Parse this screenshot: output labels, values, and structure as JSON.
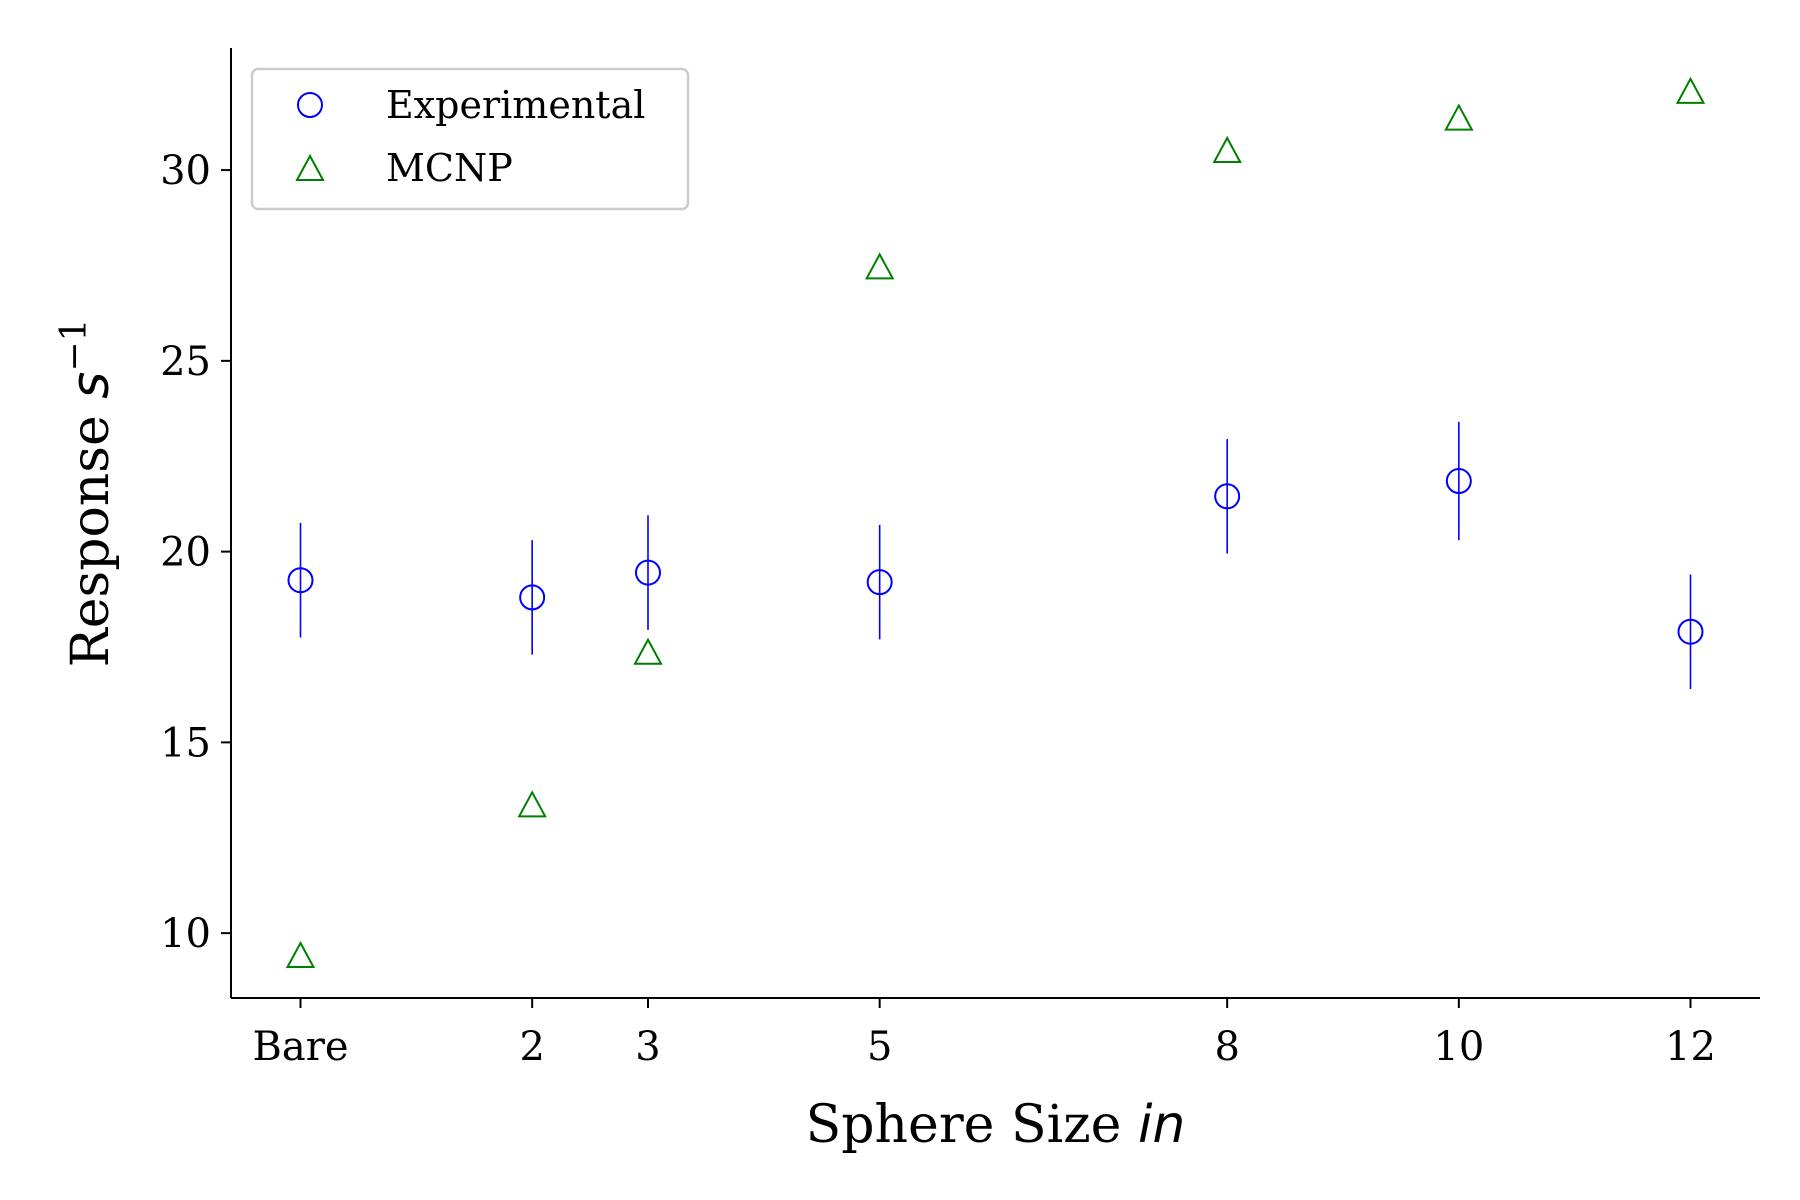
{
  "chart_data": {
    "type": "scatter",
    "title": "",
    "xlabel": {
      "text": "Sphere Size ",
      "italic": "in"
    },
    "ylabel": {
      "text": "Response ",
      "italic": "s",
      "sup": "−1"
    },
    "x": [
      0,
      2,
      3,
      5,
      8,
      10,
      12
    ],
    "x_tick_labels": [
      "Bare",
      "2",
      "3",
      "5",
      "8",
      "10",
      "12"
    ],
    "xlim": [
      -0.6,
      12.6
    ],
    "ylim": [
      8.3,
      33.2
    ],
    "y_ticks": [
      10,
      15,
      20,
      25,
      30
    ],
    "grid": false,
    "legend_position": "top-left",
    "series": [
      {
        "name": "Experimental",
        "marker": "circle",
        "color": "#0000ff",
        "values": [
          19.25,
          18.8,
          19.45,
          19.2,
          21.45,
          21.85,
          17.9
        ],
        "errors": [
          1.5,
          1.5,
          1.5,
          1.5,
          1.5,
          1.55,
          1.5
        ]
      },
      {
        "name": "MCNP",
        "marker": "triangle",
        "color": "#008000",
        "values": [
          9.4,
          13.35,
          17.35,
          27.45,
          30.5,
          31.35,
          32.05
        ]
      }
    ]
  }
}
